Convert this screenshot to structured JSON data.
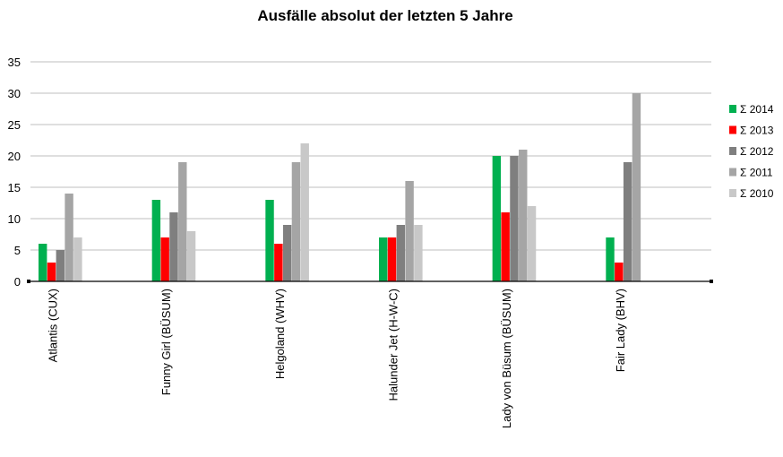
{
  "chart_data": {
    "type": "bar",
    "title": "Ausfälle absolut der letzten 5 Jahre",
    "xlabel": "",
    "ylabel": "",
    "ylim": [
      0,
      35
    ],
    "yticks": [
      0,
      5,
      10,
      15,
      20,
      25,
      30,
      35
    ],
    "grid": true,
    "legend_position": "right",
    "categories": [
      "Atlantis (CUX)",
      "Funny Girl (BÜSUM)",
      "Helgoland (WHV)",
      "Halunder Jet (H-W-C)",
      "Lady von Büsum (BÜSUM)",
      "Fair Lady (BHV)"
    ],
    "series": [
      {
        "name": "Σ 2014",
        "color": "#00b050",
        "values": [
          6,
          13,
          13,
          7,
          20,
          7
        ]
      },
      {
        "name": "Σ 2013",
        "color": "#ff0000",
        "values": [
          3,
          7,
          6,
          7,
          11,
          3
        ]
      },
      {
        "name": "Σ 2012",
        "color": "#7f7f7f",
        "values": [
          5,
          11,
          9,
          9,
          20,
          19
        ]
      },
      {
        "name": "Σ 2011",
        "color": "#a5a5a5",
        "values": [
          14,
          19,
          19,
          16,
          21,
          30
        ]
      },
      {
        "name": "Σ 2010",
        "color": "#c8c8c8",
        "values": [
          7,
          8,
          22,
          9,
          12,
          0
        ]
      }
    ]
  }
}
